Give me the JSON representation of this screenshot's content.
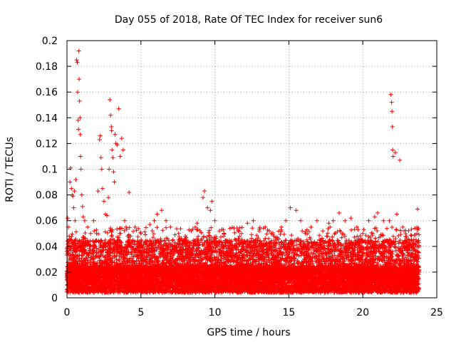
{
  "chart_data": {
    "type": "scatter",
    "title": "Day 055 of 2018, Rate Of TEC Index for receiver sun6",
    "xlabel": "GPS time / hours",
    "ylabel": "ROTI / TECUs",
    "xlim": [
      0,
      25
    ],
    "ylim": [
      0,
      0.2
    ],
    "xticks": [
      0,
      5,
      10,
      15,
      20,
      25
    ],
    "xtick_labels": [
      "0",
      "5",
      "10",
      "15",
      "20",
      "25"
    ],
    "yticks": [
      0,
      0.02,
      0.04,
      0.06,
      0.08,
      0.1,
      0.12,
      0.14,
      0.16,
      0.18,
      0.2
    ],
    "ytick_labels": [
      "0",
      "0.02",
      "0.04",
      "0.06",
      "0.08",
      "0.1",
      "0.12",
      "0.14",
      "0.16",
      "0.18",
      "0.2"
    ],
    "grid": true,
    "marker": "+",
    "color": "#ff0000",
    "series": [
      {
        "name": "ROTI",
        "points": [
          [
            0.05,
            0.062
          ],
          [
            0.1,
            0.055
          ],
          [
            0.15,
            0.048
          ],
          [
            0.2,
            0.09
          ],
          [
            0.25,
            0.101
          ],
          [
            0.3,
            0.085
          ],
          [
            0.35,
            0.08
          ],
          [
            0.4,
            0.079
          ],
          [
            0.45,
            0.07
          ],
          [
            0.5,
            0.083
          ],
          [
            0.55,
            0.06
          ],
          [
            0.6,
            0.092
          ],
          [
            0.65,
            0.185
          ],
          [
            0.7,
            0.183
          ],
          [
            0.72,
            0.16
          ],
          [
            0.75,
            0.138
          ],
          [
            0.78,
            0.131
          ],
          [
            0.8,
            0.192
          ],
          [
            0.82,
            0.17
          ],
          [
            0.85,
            0.153
          ],
          [
            0.88,
            0.14
          ],
          [
            0.9,
            0.127
          ],
          [
            0.92,
            0.11
          ],
          [
            0.95,
            0.1
          ],
          [
            1.0,
            0.08
          ],
          [
            1.05,
            0.071
          ],
          [
            1.1,
            0.063
          ],
          [
            1.2,
            0.06
          ],
          [
            1.4,
            0.055
          ],
          [
            1.6,
            0.05
          ],
          [
            1.8,
            0.06
          ],
          [
            2.0,
            0.05
          ],
          [
            2.1,
            0.083
          ],
          [
            2.2,
            0.123
          ],
          [
            2.25,
            0.126
          ],
          [
            2.3,
            0.109
          ],
          [
            2.35,
            0.1
          ],
          [
            2.4,
            0.085
          ],
          [
            2.5,
            0.075
          ],
          [
            2.6,
            0.065
          ],
          [
            2.7,
            0.064
          ],
          [
            2.8,
            0.078
          ],
          [
            2.85,
            0.1
          ],
          [
            2.9,
            0.154
          ],
          [
            2.95,
            0.142
          ],
          [
            3.0,
            0.133
          ],
          [
            3.02,
            0.13
          ],
          [
            3.05,
            0.115
          ],
          [
            3.1,
            0.109
          ],
          [
            3.15,
            0.098
          ],
          [
            3.2,
            0.09
          ],
          [
            3.25,
            0.127
          ],
          [
            3.3,
            0.12
          ],
          [
            3.4,
            0.119
          ],
          [
            3.5,
            0.147
          ],
          [
            3.6,
            0.11
          ],
          [
            3.7,
            0.124
          ],
          [
            3.8,
            0.115
          ],
          [
            3.9,
            0.06
          ],
          [
            4.0,
            0.055
          ],
          [
            4.2,
            0.082
          ],
          [
            4.3,
            0.048
          ],
          [
            4.6,
            0.055
          ],
          [
            5.0,
            0.05
          ],
          [
            5.3,
            0.049
          ],
          [
            5.6,
            0.057
          ],
          [
            5.9,
            0.06
          ],
          [
            6.1,
            0.065
          ],
          [
            6.4,
            0.068
          ],
          [
            6.7,
            0.06
          ],
          [
            7.0,
            0.055
          ],
          [
            7.3,
            0.049
          ],
          [
            7.6,
            0.045
          ],
          [
            8.0,
            0.048
          ],
          [
            8.4,
            0.052
          ],
          [
            8.8,
            0.058
          ],
          [
            9.2,
            0.078
          ],
          [
            9.3,
            0.083
          ],
          [
            9.5,
            0.07
          ],
          [
            9.7,
            0.068
          ],
          [
            9.8,
            0.075
          ],
          [
            10.0,
            0.06
          ],
          [
            10.3,
            0.052
          ],
          [
            10.6,
            0.048
          ],
          [
            11.0,
            0.04
          ],
          [
            11.4,
            0.045
          ],
          [
            11.8,
            0.05
          ],
          [
            12.2,
            0.058
          ],
          [
            12.6,
            0.06
          ],
          [
            13.0,
            0.052
          ],
          [
            13.4,
            0.055
          ],
          [
            13.8,
            0.05
          ],
          [
            14.2,
            0.047
          ],
          [
            14.5,
            0.055
          ],
          [
            14.8,
            0.06
          ],
          [
            15.1,
            0.07
          ],
          [
            15.5,
            0.068
          ],
          [
            15.8,
            0.06
          ],
          [
            16.1,
            0.05
          ],
          [
            16.5,
            0.055
          ],
          [
            16.9,
            0.06
          ],
          [
            17.3,
            0.052
          ],
          [
            17.7,
            0.058
          ],
          [
            18.0,
            0.06
          ],
          [
            18.4,
            0.066
          ],
          [
            18.8,
            0.06
          ],
          [
            19.2,
            0.062
          ],
          [
            19.6,
            0.055
          ],
          [
            20.0,
            0.05
          ],
          [
            20.4,
            0.06
          ],
          [
            20.8,
            0.063
          ],
          [
            21.0,
            0.066
          ],
          [
            21.4,
            0.06
          ],
          [
            21.8,
            0.06
          ],
          [
            21.9,
            0.158
          ],
          [
            21.95,
            0.152
          ],
          [
            21.97,
            0.145
          ],
          [
            22.0,
            0.133
          ],
          [
            22.02,
            0.115
          ],
          [
            22.05,
            0.11
          ],
          [
            22.2,
            0.113
          ],
          [
            22.3,
            0.065
          ],
          [
            22.5,
            0.107
          ],
          [
            22.7,
            0.055
          ],
          [
            23.0,
            0.045
          ],
          [
            23.3,
            0.04
          ],
          [
            23.6,
            0.045
          ],
          [
            23.7,
            0.069
          ]
        ]
      }
    ],
    "noise": {
      "x_range": [
        0,
        23.8
      ],
      "bands": [
        {
          "y_min": 0.004,
          "y_max": 0.025,
          "count": 9000
        },
        {
          "y_min": 0.015,
          "y_max": 0.045,
          "count": 3500
        },
        {
          "y_min": 0.025,
          "y_max": 0.055,
          "count": 700
        }
      ]
    }
  }
}
